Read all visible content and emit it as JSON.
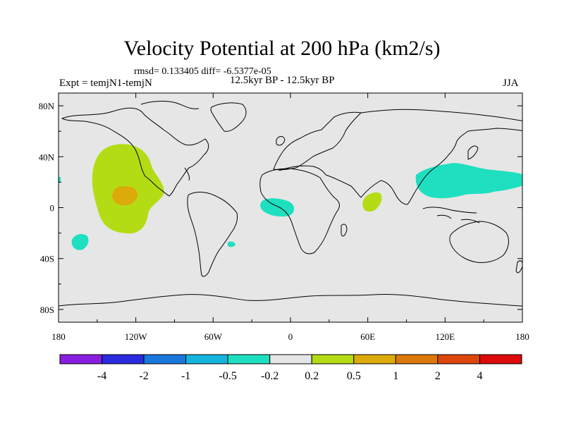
{
  "title": "Velocity Potential at 200 hPa (km2/s)",
  "stats_line": "rmsd= 0.133405 diff= -6.5377e-05",
  "experiment": "Expt = temjN1-temjN",
  "period": "12.5kyr BP - 12.5kyr BP",
  "season": "JJA",
  "map": {
    "lon_range": [
      -180,
      180
    ],
    "lat_range": [
      -90,
      90
    ],
    "lat_ticks": [
      {
        "value": 80,
        "label": "80N"
      },
      {
        "value": 40,
        "label": "40N"
      },
      {
        "value": 0,
        "label": "0"
      },
      {
        "value": -40,
        "label": "40S"
      },
      {
        "value": -80,
        "label": "80S"
      }
    ],
    "lon_ticks": [
      {
        "value": -180,
        "label": "180"
      },
      {
        "value": -120,
        "label": "120W"
      },
      {
        "value": -60,
        "label": "60W"
      },
      {
        "value": 0,
        "label": "0"
      },
      {
        "value": 60,
        "label": "60E"
      },
      {
        "value": 120,
        "label": "120E"
      },
      {
        "value": 180,
        "label": "180"
      }
    ],
    "background_color": "#e6e6e6"
  },
  "colorbar": {
    "colors": [
      "#8a1ee0",
      "#2a2adf",
      "#1a78dc",
      "#14b4e0",
      "#1ee0c0",
      "#e6e6e6",
      "#b4dc14",
      "#dcaa0a",
      "#dc780a",
      "#dc460a",
      "#dc0a0a"
    ],
    "labels": [
      "-4",
      "-2",
      "-1",
      "-0.5",
      "-0.2",
      "0.2",
      "0.5",
      "1",
      "2",
      "4"
    ]
  },
  "anomalies": [
    {
      "name": "east-pacific-positive",
      "category": "0.2 to 0.5",
      "color": "#b4dc14",
      "lon_center": -127,
      "lat_center": 10
    },
    {
      "name": "east-pacific-core",
      "category": "0.5 to 1",
      "color": "#dcaa0a",
      "lon_center": -128,
      "lat_center": 10
    },
    {
      "name": "south-pacific-negative",
      "category": "-0.5 to -0.2",
      "color": "#1ee0c0",
      "lon_center": -164,
      "lat_center": -27
    },
    {
      "name": "gulf-of-guinea-negative",
      "category": "-0.5 to -0.2",
      "color": "#1ee0c0",
      "lon_center": -8,
      "lat_center": 1
    },
    {
      "name": "south-atlantic-negative",
      "category": "-0.5 to -0.2",
      "color": "#1ee0c0",
      "lon_center": -44,
      "lat_center": -28
    },
    {
      "name": "arabian-sea-positive",
      "category": "0.2 to 0.5",
      "color": "#b4dc14",
      "lon_center": 63,
      "lat_center": 5
    },
    {
      "name": "west-pacific-negative",
      "category": "-0.5 to -0.2",
      "color": "#1ee0c0",
      "lon_center": 140,
      "lat_center": 24
    }
  ]
}
